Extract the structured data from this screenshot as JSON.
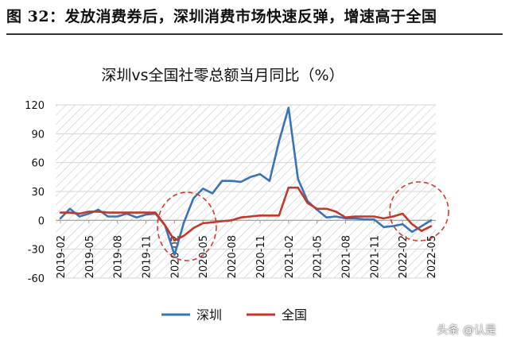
{
  "figure_title": "图 32：发放消费券后，深圳消费市场快速反弹，增速高于全国",
  "watermark": "头条 @认是",
  "chart_data": {
    "type": "line",
    "title": "深圳vs全国社零总额当月同比（%）",
    "xlabel": "",
    "ylabel": "",
    "ylim": [
      -60,
      120
    ],
    "yticks": [
      -60,
      -30,
      0,
      30,
      60,
      90,
      120
    ],
    "grid": true,
    "legend_position": "bottom",
    "x": [
      "2019-02",
      "2019-03",
      "2019-04",
      "2019-05",
      "2019-06",
      "2019-07",
      "2019-08",
      "2019-09",
      "2019-10",
      "2019-11",
      "2019-12",
      "2020-01",
      "2020-02",
      "2020-03",
      "2020-04",
      "2020-05",
      "2020-06",
      "2020-07",
      "2020-08",
      "2020-09",
      "2020-10",
      "2020-11",
      "2020-12",
      "2021-01",
      "2021-02",
      "2021-03",
      "2021-04",
      "2021-05",
      "2021-06",
      "2021-07",
      "2021-08",
      "2021-09",
      "2021-10",
      "2021-11",
      "2021-12",
      "2022-01",
      "2022-02",
      "2022-03",
      "2022-04",
      "2022-05"
    ],
    "x_tick_labels": [
      "2019-02",
      "2019-05",
      "2019-08",
      "2019-11",
      "2020-02",
      "2020-05",
      "2020-08",
      "2020-11",
      "2021-02",
      "2021-05",
      "2021-08",
      "2021-11",
      "2022-02",
      "2022-05"
    ],
    "series": [
      {
        "name": "深圳",
        "color": "#3a74b8",
        "values": [
          2,
          12,
          4,
          7,
          11,
          4,
          4,
          7,
          3,
          6,
          7,
          -5,
          -36,
          -2,
          23,
          33,
          28,
          41,
          41,
          40,
          45,
          48,
          41,
          82,
          117,
          43,
          20,
          11,
          3,
          4,
          2,
          2,
          1,
          1,
          -7,
          -6,
          -4,
          -12,
          -6,
          0
        ]
      },
      {
        "name": "全国",
        "color": "#c0392b",
        "values": [
          8,
          8,
          7,
          9,
          9,
          8,
          8,
          8,
          8,
          8,
          8,
          -5,
          -21,
          -16,
          -8,
          -3,
          -2,
          -1,
          0,
          3,
          4,
          5,
          5,
          5,
          34,
          34,
          18,
          12,
          12,
          9,
          3,
          4,
          4,
          4,
          2,
          4,
          7,
          -4,
          -11,
          -6
        ]
      }
    ]
  }
}
